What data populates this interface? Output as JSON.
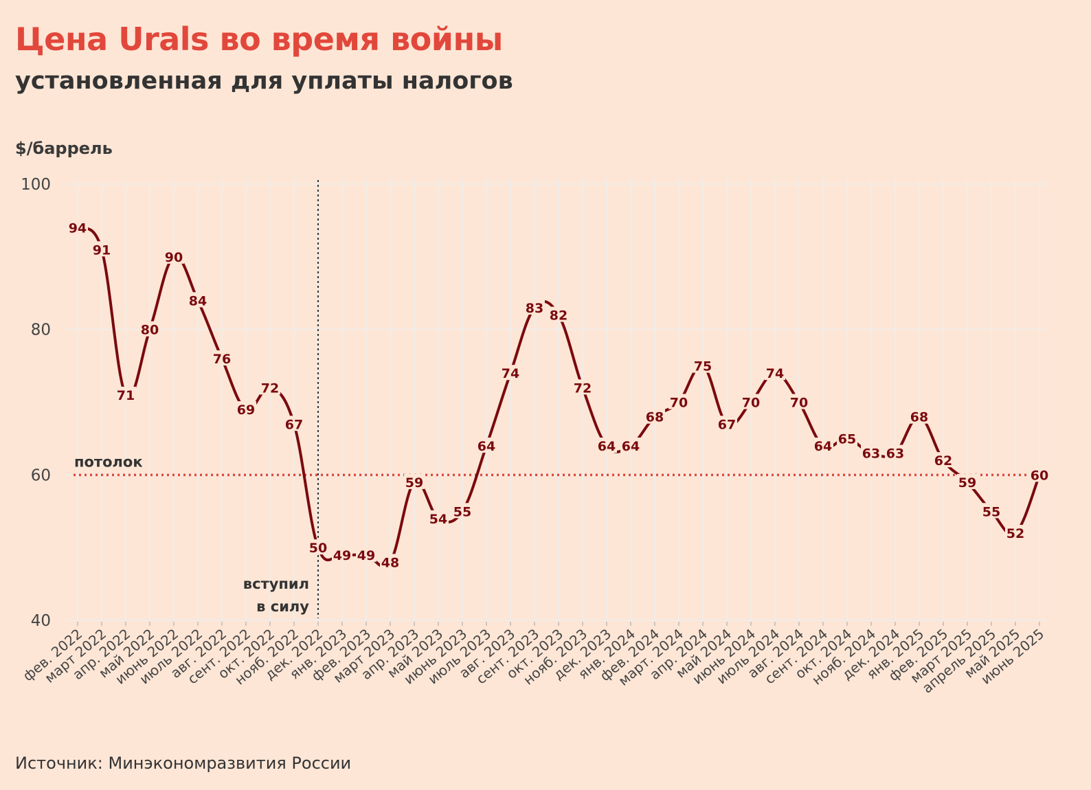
{
  "header": {
    "title": "Цена Urals во время войны",
    "subtitle": "установленная для уплаты налогов",
    "unit": "$/баррель"
  },
  "footer": {
    "source": "Источник: Минэкономразвития России"
  },
  "colors": {
    "background": "#fde6d6",
    "title": "#e2473b",
    "line": "#7a0a0f",
    "ceiling": "#e2473b",
    "grid": "#f2ece8"
  },
  "chart_data": {
    "type": "line",
    "title": "Цена Urals во время войны",
    "subtitle": "установленная для уплаты налогов",
    "ylabel": "$/баррель",
    "xlabel": "",
    "ylim": [
      40,
      100
    ],
    "yticks": [
      40,
      60,
      80,
      100
    ],
    "grid": true,
    "categories": [
      "фев. 2022",
      "март 2022",
      "апр. 2022",
      "май 2022",
      "июнь 2022",
      "июль 2022",
      "авг. 2022",
      "сент. 2022",
      "окт. 2022",
      "нояб. 2022",
      "дек. 2022",
      "янв. 2023",
      "фев. 2023",
      "март 2023",
      "апр. 2023",
      "май 2023",
      "июнь 2023",
      "июль 2023",
      "авг. 2023",
      "сент. 2023",
      "окт. 2023",
      "нояб. 2023",
      "дек. 2023",
      "янв. 2024",
      "фев. 2024",
      "март. 2024",
      "апр. 2024",
      "май 2024",
      "июнь 2024",
      "июль 2024",
      "авг. 2024",
      "сент. 2024",
      "окт. 2024",
      "нояб. 2024",
      "дек. 2024",
      "янв. 2025",
      "фев. 2025",
      "март 2025",
      "апрель 2025",
      "май 2025",
      "июнь 2025"
    ],
    "series": [
      {
        "name": "Urals",
        "values": [
          94,
          91,
          71,
          80,
          90,
          84,
          76,
          69,
          72,
          67,
          50,
          49,
          49,
          48,
          59,
          54,
          55,
          64,
          74,
          83,
          82,
          72,
          64,
          64,
          68,
          70,
          75,
          67,
          70,
          74,
          70,
          64,
          65,
          63,
          63,
          68,
          62,
          59,
          55,
          52,
          60
        ]
      }
    ],
    "reference_lines": [
      {
        "type": "horizontal",
        "value": 60,
        "label": "потолок"
      },
      {
        "type": "vertical",
        "category": "дек. 2022",
        "label_lines": [
          "вступил",
          "в силу"
        ]
      }
    ]
  }
}
